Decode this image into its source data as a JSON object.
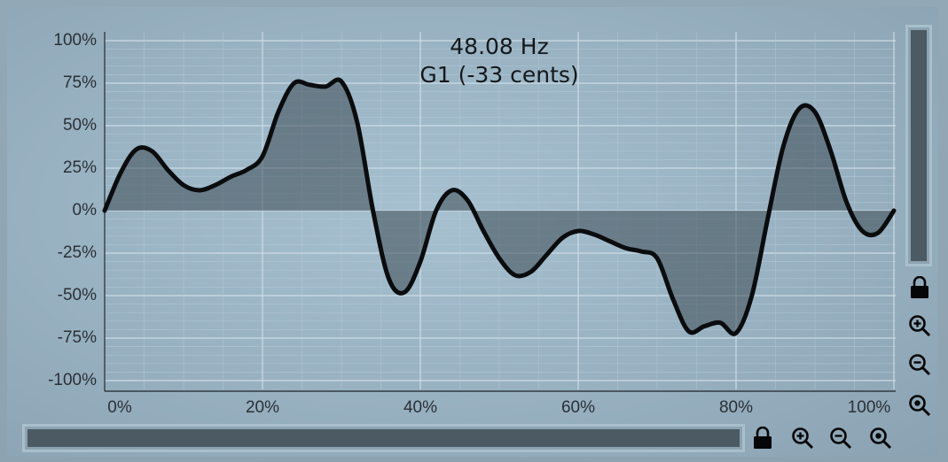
{
  "readout": {
    "frequency": "48.08 Hz",
    "note": "G1 (-33 cents)"
  },
  "y_axis": {
    "labels": [
      "100%",
      "75%",
      "50%",
      "25%",
      "0%",
      "-25%",
      "-50%",
      "-75%",
      "-100%"
    ]
  },
  "x_axis": {
    "labels": [
      "0%",
      "20%",
      "40%",
      "60%",
      "80%",
      "100%"
    ]
  },
  "chart_data": {
    "type": "area",
    "xlabel": "",
    "ylabel": "",
    "xlim": [
      0,
      100
    ],
    "ylim": [
      -100,
      100
    ],
    "grid": true,
    "series": [
      {
        "x": [
          0,
          2,
          4,
          6,
          8,
          10,
          12,
          14,
          16,
          18,
          20,
          22,
          24,
          26,
          28,
          30,
          32,
          34,
          36,
          38,
          40,
          42,
          44,
          46,
          48,
          50,
          52,
          54,
          56,
          58,
          60,
          62,
          64,
          66,
          68,
          70,
          72,
          74,
          76,
          78,
          80,
          82,
          84,
          86,
          88,
          90,
          92,
          94,
          96,
          98,
          100
        ],
        "values": [
          0,
          22,
          36,
          35,
          24,
          15,
          12,
          15,
          20,
          24,
          32,
          58,
          75,
          74,
          73,
          76,
          52,
          0,
          -40,
          -48,
          -30,
          0,
          12,
          6,
          -12,
          -28,
          -38,
          -36,
          -26,
          -16,
          -12,
          -14,
          -18,
          -22,
          -24,
          -28,
          -52,
          -71,
          -68,
          -66,
          -72,
          -50,
          -5,
          38,
          60,
          58,
          35,
          5,
          -12,
          -13,
          0
        ]
      }
    ]
  },
  "colors": {
    "curve": "#0a0c0e",
    "fill": "#3c4a53",
    "grid_minor": "#b8ccd8",
    "grid_major": "#d2e0e8",
    "axis": "#1e2428"
  },
  "icons": {
    "lock": "lock-icon",
    "zoom_in": "zoom-in-icon",
    "zoom_out": "zoom-out-icon",
    "zoom_reset": "zoom-fit-icon"
  }
}
